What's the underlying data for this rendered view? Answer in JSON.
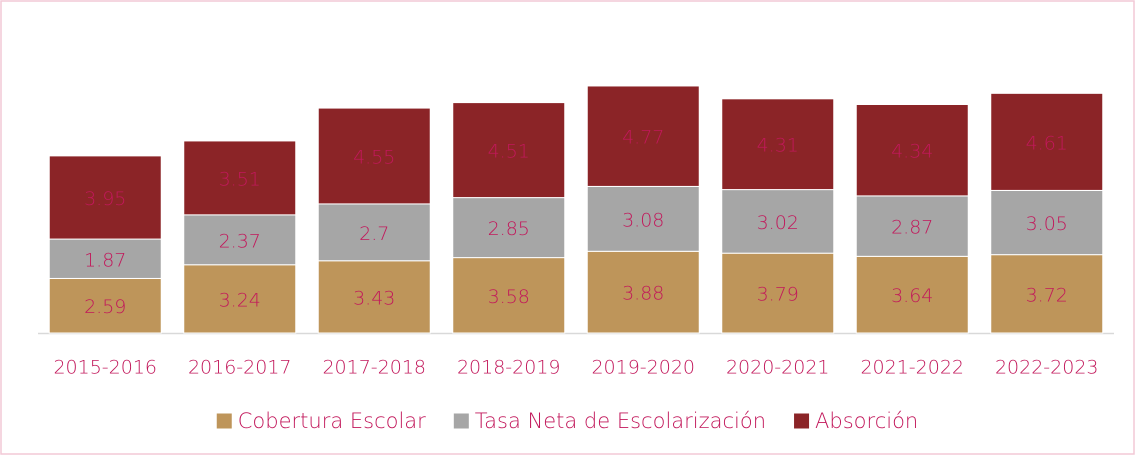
{
  "chart_data": {
    "type": "stacked_bar",
    "categories": [
      "2015-2016",
      "2016-2017",
      "2017-2018",
      "2018-2019",
      "2019-2020",
      "2020-2021",
      "2021-2022",
      "2022-2023"
    ],
    "series": [
      {
        "name": "Cobertura Escolar",
        "color": "#be955a",
        "values": [
          2.59,
          3.24,
          3.43,
          3.58,
          3.88,
          3.79,
          3.64,
          3.72
        ]
      },
      {
        "name": "Tasa Neta de Escolarización",
        "color": "#a6a6a6",
        "values": [
          1.87,
          2.37,
          2.7,
          2.85,
          3.08,
          3.02,
          2.87,
          3.05
        ]
      },
      {
        "name": "Absorción",
        "color": "#8b2427",
        "values": [
          3.95,
          3.51,
          4.55,
          4.51,
          4.77,
          4.31,
          4.34,
          4.61
        ]
      }
    ],
    "legend": "bottom"
  }
}
